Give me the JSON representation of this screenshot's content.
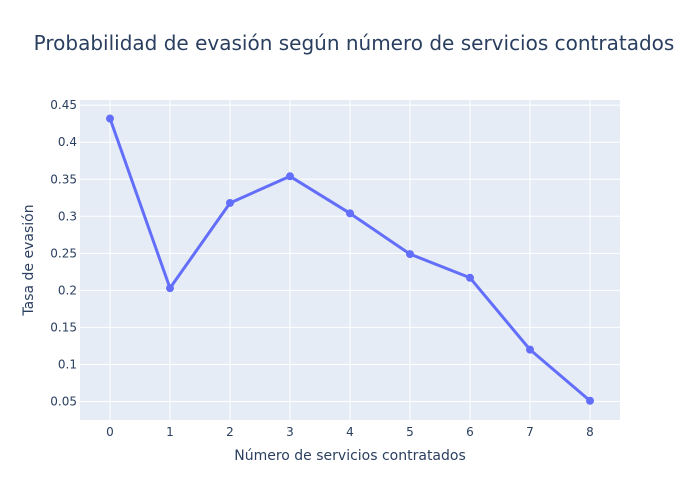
{
  "chart_data": {
    "type": "line",
    "title": "Probabilidad de evasión según número de servicios contratados",
    "xlabel": "Número de servicios contratados",
    "ylabel": "Tasa de evasión",
    "x": [
      0,
      1,
      2,
      3,
      4,
      5,
      6,
      7,
      8
    ],
    "series": [
      {
        "values": [
          0.432,
          0.203,
          0.318,
          0.354,
          0.304,
          0.249,
          0.217,
          0.12,
          0.051
        ]
      }
    ],
    "xlim": [
      -0.5,
      8.5
    ],
    "ylim": [
      0.025,
      0.457
    ],
    "x_ticks": [
      0,
      1,
      2,
      3,
      4,
      5,
      6,
      7,
      8
    ],
    "x_tick_labels": [
      "0",
      "1",
      "2",
      "3",
      "4",
      "5",
      "6",
      "7",
      "8"
    ],
    "y_ticks": [
      0.05,
      0.1,
      0.15,
      0.2,
      0.25,
      0.3,
      0.35,
      0.4,
      0.45
    ],
    "y_tick_labels": [
      "0.05",
      "0.1",
      "0.15",
      "0.2",
      "0.25",
      "0.3",
      "0.35",
      "0.4",
      "0.45"
    ],
    "grid": true,
    "colors": {
      "line": "#636efa",
      "plot_bg": "#e5ecf6",
      "grid": "#ffffff",
      "text": "#2a3f5f"
    }
  }
}
